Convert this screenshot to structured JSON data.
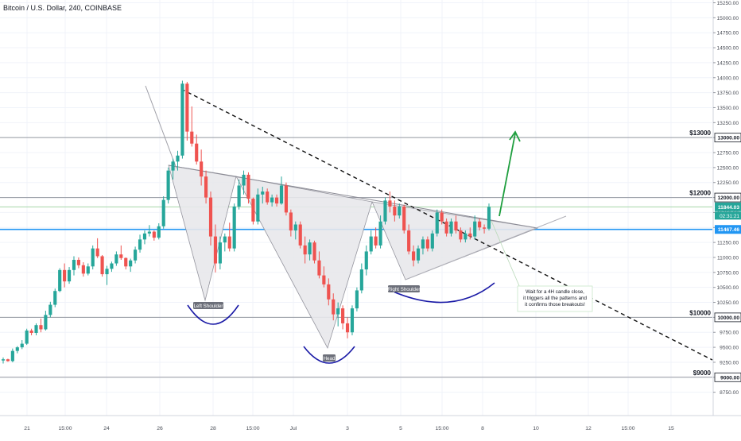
{
  "header": {
    "symbol": "Bitcoin / U.S. Dollar, 240, COINBASE"
  },
  "colors": {
    "up": "#26a69a",
    "down": "#ef5350",
    "grid": "#f0f3fa",
    "hline": "#9598a1",
    "blue": "#2196f3",
    "green_line": "#a5d6a7",
    "arrow": "#1e9e3e",
    "cup": "#1a1aa6",
    "pattern_fill": "#e8e8ec",
    "pattern_stroke": "#8a8a94",
    "axis_text": "#4a4e57"
  },
  "chart_data": {
    "type": "candlestick",
    "ylim": [
      8500,
      15250
    ],
    "y_ticks": [
      15250,
      15000,
      14750,
      14500,
      14250,
      14000,
      13750,
      13500,
      13250,
      13000,
      12750,
      12500,
      12250,
      12000,
      11750,
      11500,
      11250,
      11000,
      10750,
      10500,
      10250,
      10000,
      9750,
      9500,
      9250,
      9000,
      8750
    ],
    "x_tick_labels": [
      "21",
      "15:00",
      "24",
      "26",
      "28",
      "15:00",
      "Jul",
      "3",
      "5",
      "15:00",
      "8",
      "10",
      "12",
      "15:00",
      "15"
    ],
    "levels": [
      {
        "price": 13000,
        "label": "$13000",
        "tag": "13000.00"
      },
      {
        "price": 12000,
        "label": "$12000",
        "tag": "12000.00"
      },
      {
        "price": 10000,
        "label": "$10000",
        "tag": "10000.00"
      },
      {
        "price": 9000,
        "label": "$9000",
        "tag": "9000.00"
      }
    ],
    "last_price": {
      "price": 11844.03,
      "tag": "11844.03",
      "countdown": "02:31:21"
    },
    "blue_level": {
      "price": 11467.46,
      "tag": "11467.46"
    },
    "candles": [
      [
        9280,
        9330,
        9230,
        9300
      ],
      [
        9300,
        9310,
        9260,
        9270
      ],
      [
        9270,
        9480,
        9250,
        9440
      ],
      [
        9440,
        9520,
        9400,
        9500
      ],
      [
        9500,
        9620,
        9470,
        9560
      ],
      [
        9560,
        9810,
        9540,
        9780
      ],
      [
        9780,
        9810,
        9700,
        9740
      ],
      [
        9740,
        9900,
        9700,
        9870
      ],
      [
        9870,
        9980,
        9750,
        9800
      ],
      [
        9800,
        10110,
        9780,
        10040
      ],
      [
        10040,
        10260,
        10000,
        10210
      ],
      [
        10210,
        10480,
        10170,
        10440
      ],
      [
        10440,
        10820,
        10420,
        10790
      ],
      [
        10790,
        10900,
        10500,
        10600
      ],
      [
        10600,
        10840,
        10560,
        10790
      ],
      [
        10790,
        11020,
        10700,
        10960
      ],
      [
        10960,
        11000,
        10820,
        10870
      ],
      [
        10870,
        10920,
        10680,
        10730
      ],
      [
        10730,
        10900,
        10700,
        10850
      ],
      [
        10850,
        11200,
        10800,
        11150
      ],
      [
        11150,
        11320,
        10990,
        11020
      ],
      [
        11020,
        11040,
        10680,
        10720
      ],
      [
        10720,
        10860,
        10540,
        10810
      ],
      [
        10810,
        10930,
        10760,
        10900
      ],
      [
        10900,
        11100,
        10860,
        11050
      ],
      [
        11050,
        11200,
        10960,
        10990
      ],
      [
        10990,
        11000,
        10800,
        10850
      ],
      [
        10850,
        10980,
        10760,
        10950
      ],
      [
        10950,
        11180,
        10900,
        11130
      ],
      [
        11130,
        11380,
        11080,
        11300
      ],
      [
        11300,
        11450,
        11220,
        11400
      ],
      [
        11400,
        11540,
        11350,
        11430
      ],
      [
        11430,
        11450,
        11280,
        11330
      ],
      [
        11330,
        11570,
        11300,
        11520
      ],
      [
        11520,
        12020,
        11480,
        11960
      ],
      [
        11960,
        12500,
        11900,
        12450
      ],
      [
        12450,
        12650,
        12300,
        12600
      ],
      [
        12600,
        12780,
        12450,
        12700
      ],
      [
        12700,
        13950,
        12650,
        13900
      ],
      [
        13900,
        13930,
        12950,
        13100
      ],
      [
        13100,
        13520,
        12850,
        12900
      ],
      [
        12900,
        13050,
        12550,
        12600
      ],
      [
        12600,
        12800,
        12200,
        12350
      ],
      [
        12350,
        12450,
        11900,
        12000
      ],
      [
        12000,
        12100,
        11200,
        11350
      ],
      [
        11350,
        11550,
        10750,
        10900
      ],
      [
        10900,
        11350,
        10800,
        11250
      ],
      [
        11250,
        11400,
        11100,
        11350
      ],
      [
        11350,
        11580,
        11100,
        11150
      ],
      [
        11150,
        11900,
        11100,
        11850
      ],
      [
        11850,
        12300,
        11800,
        12200
      ],
      [
        12200,
        12450,
        12050,
        12380
      ],
      [
        12380,
        12420,
        11900,
        11980
      ],
      [
        11980,
        12000,
        11550,
        11600
      ],
      [
        11600,
        12150,
        11550,
        12050
      ],
      [
        12050,
        12180,
        11900,
        12100
      ],
      [
        12100,
        12150,
        11880,
        11920
      ],
      [
        11920,
        12050,
        11850,
        12000
      ],
      [
        12000,
        12050,
        11850,
        11900
      ],
      [
        11900,
        12350,
        11880,
        12200
      ],
      [
        12200,
        12250,
        11700,
        11750
      ],
      [
        11750,
        11800,
        11350,
        11450
      ],
      [
        11450,
        11600,
        11300,
        11550
      ],
      [
        11550,
        11600,
        11150,
        11200
      ],
      [
        11200,
        11350,
        10900,
        11050
      ],
      [
        11050,
        11300,
        10950,
        11250
      ],
      [
        11250,
        11280,
        10900,
        10950
      ],
      [
        10950,
        11100,
        10650,
        10700
      ],
      [
        10700,
        10850,
        10500,
        10550
      ],
      [
        10550,
        10650,
        10200,
        10300
      ],
      [
        10300,
        10400,
        9950,
        10050
      ],
      [
        10050,
        10250,
        9850,
        10150
      ],
      [
        10150,
        10200,
        9800,
        9900
      ],
      [
        9900,
        10000,
        9650,
        9750
      ],
      [
        9750,
        10200,
        9700,
        10150
      ],
      [
        10150,
        10500,
        10100,
        10450
      ],
      [
        10450,
        10900,
        10400,
        10800
      ],
      [
        10800,
        11200,
        10700,
        11100
      ],
      [
        11100,
        11450,
        11050,
        11350
      ],
      [
        11350,
        11500,
        11150,
        11200
      ],
      [
        11200,
        11700,
        11150,
        11600
      ],
      [
        11600,
        12000,
        11550,
        11950
      ],
      [
        11950,
        12100,
        11750,
        11850
      ],
      [
        11850,
        11950,
        11600,
        11700
      ],
      [
        11700,
        11900,
        11650,
        11850
      ],
      [
        11850,
        11880,
        11400,
        11450
      ],
      [
        11450,
        11550,
        11050,
        11100
      ],
      [
        11100,
        11200,
        10850,
        10950
      ],
      [
        10950,
        11200,
        10900,
        11150
      ],
      [
        11150,
        11350,
        11050,
        11300
      ],
      [
        11300,
        11350,
        11100,
        11150
      ],
      [
        11150,
        11450,
        11100,
        11400
      ],
      [
        11400,
        11800,
        11350,
        11750
      ],
      [
        11750,
        11800,
        11550,
        11600
      ],
      [
        11600,
        11650,
        11350,
        11400
      ],
      [
        11400,
        11650,
        11350,
        11600
      ],
      [
        11600,
        11700,
        11400,
        11450
      ],
      [
        11450,
        11500,
        11250,
        11300
      ],
      [
        11300,
        11450,
        11250,
        11400
      ],
      [
        11400,
        11500,
        11300,
        11350
      ],
      [
        11350,
        11700,
        11300,
        11600
      ],
      [
        11600,
        11650,
        11450,
        11500
      ],
      [
        11500,
        11550,
        11400,
        11480
      ],
      [
        11480,
        11900,
        11450,
        11844
      ]
    ],
    "annotations": [
      {
        "label": "Left Shoulder"
      },
      {
        "label": "Head"
      },
      {
        "label": "Right Shoulder"
      }
    ],
    "note": "Wait for a 4H candle close, it triggers all the patterns and it confirms those breakouts!"
  }
}
